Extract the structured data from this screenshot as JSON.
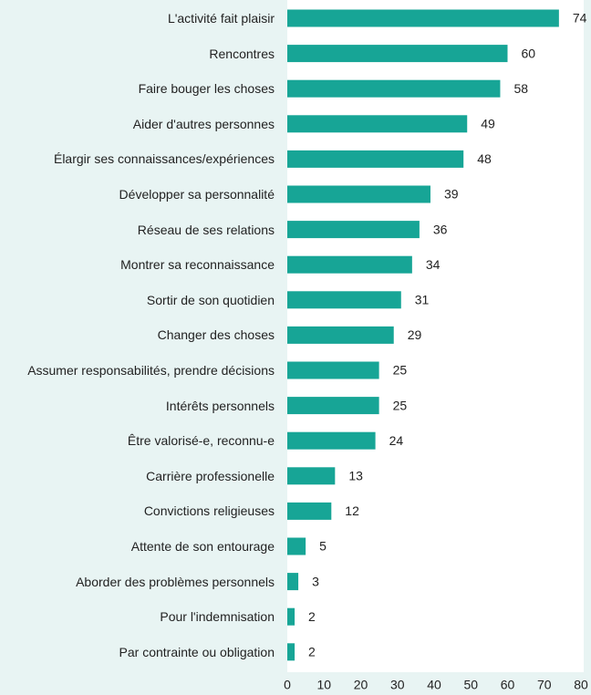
{
  "chart_data": {
    "type": "bar",
    "orientation": "horizontal",
    "categories": [
      "L'activité fait plaisir",
      "Rencontres",
      "Faire bouger les choses",
      "Aider d'autres personnes",
      "Élargir ses connaissances/expériences",
      "Développer sa personnalité",
      "Réseau de ses relations",
      "Montrer sa reconnaissance",
      "Sortir de son quotidien",
      "Changer des choses",
      "Assumer responsabilités, prendre décisions",
      "Intérêts personnels",
      "Être valorisé-e, reconnu-e",
      "Carrière professionelle",
      "Convictions religieuses",
      "Attente de son entourage",
      "Aborder des problèmes personnels",
      "Pour l'indemnisation",
      "Par contrainte ou obligation"
    ],
    "values": [
      74,
      60,
      58,
      49,
      48,
      39,
      36,
      34,
      31,
      29,
      25,
      25,
      24,
      13,
      12,
      5,
      3,
      2,
      2
    ],
    "color": "#17a596",
    "xlim": [
      0,
      80
    ],
    "xticks": [
      0,
      10,
      20,
      30,
      40,
      50,
      60,
      70,
      80
    ],
    "grid": false
  }
}
